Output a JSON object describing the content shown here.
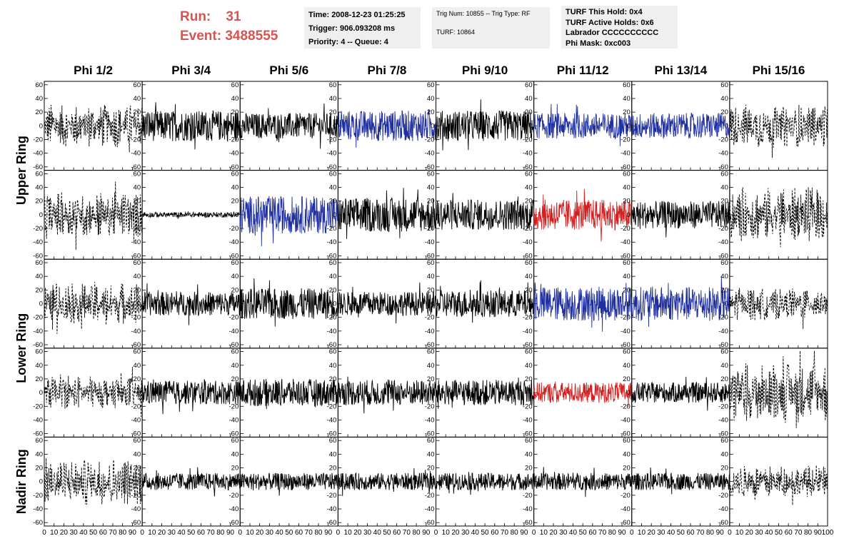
{
  "run_label": "Run:",
  "run_value": "31",
  "event_label": "Event:",
  "event_value": "3488555",
  "time_box": {
    "time": "Time: 2008-12-23 01:25:25",
    "trigger": "Trigger: 906.093208 ms",
    "priority": "Priority: 4 -- Queue: 4"
  },
  "trig_box": {
    "trig": "Trig Num: 10855 -- Trig Type: RF",
    "turf": "TURF: 10864"
  },
  "turf_box": {
    "hold": "TURF This Hold: 0x4",
    "active": "TURF Active Holds: 0x6",
    "labrador": "Labrador CCCCCCCCCC",
    "phimask": "Phi Mask: 0xc003"
  },
  "columns": [
    "Phi 1/2",
    "Phi 3/4",
    "Phi 5/6",
    "Phi 7/8",
    "Phi 9/10",
    "Phi 11/12",
    "Phi 13/14",
    "Phi 15/16"
  ],
  "ring_labels": [
    "Upper Ring",
    "Lower Ring",
    "Nadir Ring"
  ],
  "colors": {
    "black": "#000000",
    "blue": "#1f2f9e",
    "red": "#d62020",
    "run": "#d9534f",
    "infobox_bg": "#efefef"
  },
  "chart_data": {
    "type": "line",
    "xlim": [
      0,
      100
    ],
    "ylim": [
      -65,
      65
    ],
    "x_ticks": [
      0,
      10,
      20,
      30,
      40,
      50,
      60,
      70,
      80,
      90,
      100
    ],
    "y_ticks": [
      -60,
      -40,
      -20,
      0,
      20,
      40,
      60
    ],
    "rows": 5,
    "cols": 8,
    "panel_styles": [
      [
        "dashed",
        "solid",
        "solid",
        "solid",
        "solid",
        "solid",
        "solid",
        "dashed"
      ],
      [
        "dashed",
        "solid",
        "solid",
        "solid",
        "solid",
        "solid",
        "solid",
        "dashed"
      ],
      [
        "dashed",
        "solid",
        "solid",
        "solid",
        "solid",
        "solid",
        "solid",
        "dashed"
      ],
      [
        "dashed",
        "solid",
        "solid",
        "solid",
        "solid",
        "solid",
        "solid",
        "dashed"
      ],
      [
        "dashed",
        "solid",
        "solid",
        "solid",
        "solid",
        "solid",
        "solid",
        "dashed"
      ]
    ],
    "panel_colors": [
      [
        "black",
        "black",
        "black",
        "blue",
        "black",
        "blue",
        "blue",
        "black"
      ],
      [
        "black",
        "black",
        "blue",
        "black",
        "black",
        "red",
        "black",
        "black"
      ],
      [
        "black",
        "black",
        "black",
        "black",
        "black",
        "blue",
        "blue",
        "black"
      ],
      [
        "black",
        "black",
        "black",
        "black",
        "black",
        "red",
        "black",
        "black"
      ],
      [
        "black",
        "black",
        "black",
        "black",
        "black",
        "black",
        "black",
        "black"
      ]
    ],
    "panel_amplitudes": [
      [
        20,
        18,
        15,
        18,
        18,
        15,
        15,
        20
      ],
      [
        22,
        3,
        22,
        20,
        18,
        18,
        16,
        25
      ],
      [
        20,
        14,
        18,
        14,
        16,
        20,
        20,
        15
      ],
      [
        15,
        14,
        16,
        15,
        15,
        12,
        12,
        28
      ],
      [
        22,
        10,
        10,
        10,
        10,
        10,
        10,
        15
      ]
    ]
  }
}
